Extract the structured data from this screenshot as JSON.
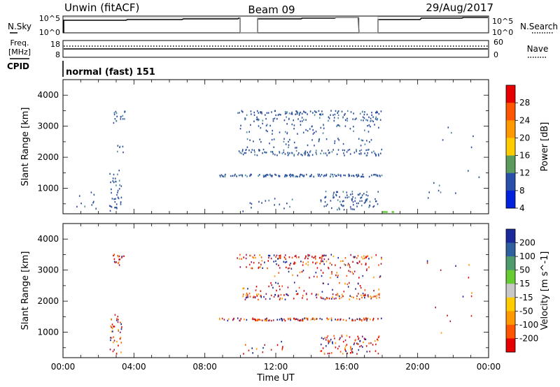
{
  "header": {
    "station_title": "Unwin (fitACF)",
    "beam_label": "Beam 09",
    "date_label": "29/Aug/2017"
  },
  "strip_labels": {
    "nsky": "N.Sky",
    "nsearch": "N.Search",
    "freq": "Freq.",
    "freq_unit": "[MHz]",
    "nave": "Nave",
    "cpid": "CPID"
  },
  "strip_ticks": {
    "sky_left": [
      "10^5",
      "10^0"
    ],
    "sky_right": [
      "10^5",
      "10^0"
    ],
    "freq_left": [
      "18",
      "8"
    ],
    "freq_right": [
      "60",
      "0"
    ]
  },
  "cpid_text": "normal (fast) 151",
  "chart_data": [
    {
      "type": "heatmap",
      "name": "power",
      "ylabel": "Slant Range [km]",
      "xlabel": "",
      "colorbar_label": "Power [dB]",
      "colorbar_ticks": [
        "28",
        "24",
        "20",
        "16",
        "12",
        "8",
        "4"
      ],
      "colorbar_colors": [
        "#e60000",
        "#ff5500",
        "#ff9900",
        "#ffcc00",
        "#5c9b5c",
        "#2a4fa8",
        "#0022dd"
      ],
      "yticks": [
        "4000",
        "3000",
        "2000",
        "1000"
      ],
      "ylim": [
        180,
        4500
      ],
      "xlim": [
        0,
        24
      ],
      "data_color": "#2d4f9e",
      "clusters": [
        {
          "t": [
            2.8,
            3.5
          ],
          "r": [
            3100,
            3500
          ],
          "n": 18
        },
        {
          "t": [
            2.6,
            3.3
          ],
          "r": [
            250,
            1600
          ],
          "n": 40
        },
        {
          "t": [
            2.9,
            3.4
          ],
          "r": [
            2150,
            2450
          ],
          "n": 6
        },
        {
          "t": [
            9.8,
            18.0
          ],
          "r": [
            3350,
            3500
          ],
          "n": 90
        },
        {
          "t": [
            10.2,
            18.0
          ],
          "r": [
            3150,
            3300
          ],
          "n": 60
        },
        {
          "t": [
            9.9,
            18.0
          ],
          "r": [
            2750,
            3100
          ],
          "n": 55
        },
        {
          "t": [
            9.9,
            18.0
          ],
          "r": [
            2050,
            2250
          ],
          "n": 110
        },
        {
          "t": [
            9.9,
            18.0
          ],
          "r": [
            2300,
            2600
          ],
          "n": 40
        },
        {
          "t": [
            8.8,
            18.0
          ],
          "r": [
            1370,
            1450
          ],
          "n": 130
        },
        {
          "t": [
            14.5,
            17.8
          ],
          "r": [
            300,
            900
          ],
          "n": 90
        },
        {
          "t": [
            10.0,
            13.0
          ],
          "r": [
            250,
            700
          ],
          "n": 15
        },
        {
          "t": [
            20.5,
            23.5
          ],
          "r": [
            600,
            3500
          ],
          "n": 14
        },
        {
          "t": [
            0.5,
            2.3
          ],
          "r": [
            300,
            900
          ],
          "n": 10
        }
      ]
    },
    {
      "type": "heatmap",
      "name": "velocity",
      "ylabel": "Slant Range [km]",
      "xlabel": "Time UT",
      "colorbar_label": "Velocity [m s^-1]",
      "colorbar_ticks": [
        "200",
        "100",
        "50",
        "15",
        "-15",
        "-50",
        "-100",
        "-200"
      ],
      "colorbar_colors": [
        "#1a2a9a",
        "#2e5f9e",
        "#4f9a6a",
        "#66cc33",
        "#c8c8c8",
        "#ffcc00",
        "#ff9900",
        "#ff5500",
        "#e60000"
      ],
      "yticks": [
        "4000",
        "3000",
        "2000",
        "1000"
      ],
      "xticks": [
        "00:00",
        "04:00",
        "08:00",
        "12:00",
        "16:00",
        "20:00",
        "00:00"
      ],
      "ylim": [
        180,
        4500
      ],
      "xlim": [
        0,
        24
      ],
      "data_colors": [
        "#e60000",
        "#ff5500",
        "#c81e1e",
        "#ff9900",
        "#1a2a9a",
        "#9b1a5a"
      ],
      "clusters": [
        {
          "t": [
            2.8,
            3.5
          ],
          "r": [
            3100,
            3500
          ],
          "n": 18
        },
        {
          "t": [
            2.6,
            3.3
          ],
          "r": [
            250,
            1600
          ],
          "n": 40
        },
        {
          "t": [
            9.8,
            18.0
          ],
          "r": [
            3350,
            3500
          ],
          "n": 90
        },
        {
          "t": [
            10.2,
            18.0
          ],
          "r": [
            3150,
            3300
          ],
          "n": 60
        },
        {
          "t": [
            9.9,
            18.0
          ],
          "r": [
            2750,
            3100
          ],
          "n": 55
        },
        {
          "t": [
            9.9,
            18.0
          ],
          "r": [
            2050,
            2250
          ],
          "n": 110
        },
        {
          "t": [
            9.9,
            18.0
          ],
          "r": [
            2300,
            2600
          ],
          "n": 40
        },
        {
          "t": [
            8.8,
            18.0
          ],
          "r": [
            1370,
            1450
          ],
          "n": 130
        },
        {
          "t": [
            14.5,
            17.8
          ],
          "r": [
            300,
            900
          ],
          "n": 90
        },
        {
          "t": [
            10.0,
            13.0
          ],
          "r": [
            250,
            700
          ],
          "n": 15
        },
        {
          "t": [
            20.5,
            23.5
          ],
          "r": [
            600,
            3500
          ],
          "n": 14
        }
      ]
    }
  ]
}
